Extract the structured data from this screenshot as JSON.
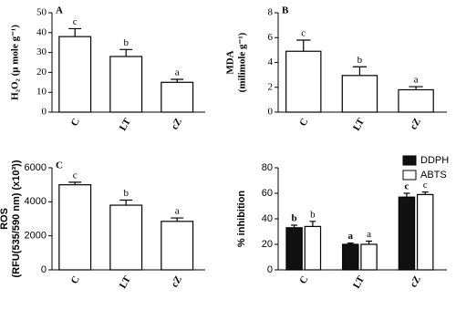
{
  "chart_data": [
    {
      "type": "bar",
      "panel_label": "A",
      "y_label": [
        "H₂O₂ (μ mole g⁻¹)"
      ],
      "categories": [
        "C",
        "LT",
        "cZ"
      ],
      "values": [
        38,
        28,
        15
      ],
      "errors": [
        4,
        3.5,
        1.5
      ],
      "letters": [
        "c",
        "b",
        "a"
      ],
      "color": "#ffffff",
      "ylim": [
        0,
        50
      ],
      "yticks": [
        0,
        10,
        20,
        30,
        40,
        50
      ]
    },
    {
      "type": "bar",
      "panel_label": "B",
      "y_label": [
        "MDA",
        "(milimole g⁻¹)"
      ],
      "categories": [
        "C",
        "LT",
        "cZ"
      ],
      "values": [
        4.9,
        2.95,
        1.8
      ],
      "errors": [
        0.9,
        0.7,
        0.25
      ],
      "letters": [
        "c",
        "b",
        "a"
      ],
      "color": "#ffffff",
      "ylim": [
        0,
        8
      ],
      "yticks": [
        0,
        2,
        4,
        6,
        8
      ]
    },
    {
      "type": "bar",
      "panel_label": "C",
      "y_label": [
        "ROS",
        "(RFU(535/590 nm) (x10³))"
      ],
      "categories": [
        "C",
        "LT",
        "cZ"
      ],
      "values": [
        5000,
        3800,
        2850
      ],
      "errors": [
        150,
        300,
        200
      ],
      "letters": [
        "c",
        "b",
        "a"
      ],
      "color": "#ffffff",
      "ylim": [
        0,
        6000
      ],
      "yticks": [
        0,
        2000,
        4000,
        6000
      ]
    },
    {
      "type": "bar",
      "y_label": [
        "% inhibition"
      ],
      "legend": "top-right",
      "categories": [
        "C",
        "LT",
        "cZ"
      ],
      "series": [
        {
          "name": "DDPH",
          "color": "#111111",
          "values": [
            33,
            20,
            57
          ],
          "errors": [
            2,
            1,
            3
          ],
          "letters": [
            "b",
            "a",
            "c"
          ]
        },
        {
          "name": "ABTS",
          "color": "#ffffff",
          "values": [
            34,
            20,
            59
          ],
          "errors": [
            4,
            2.5,
            2
          ],
          "letters": [
            "b",
            "a",
            "c"
          ]
        }
      ],
      "ylim": [
        0,
        80
      ],
      "yticks": [
        0,
        20,
        40,
        60,
        80
      ]
    }
  ]
}
